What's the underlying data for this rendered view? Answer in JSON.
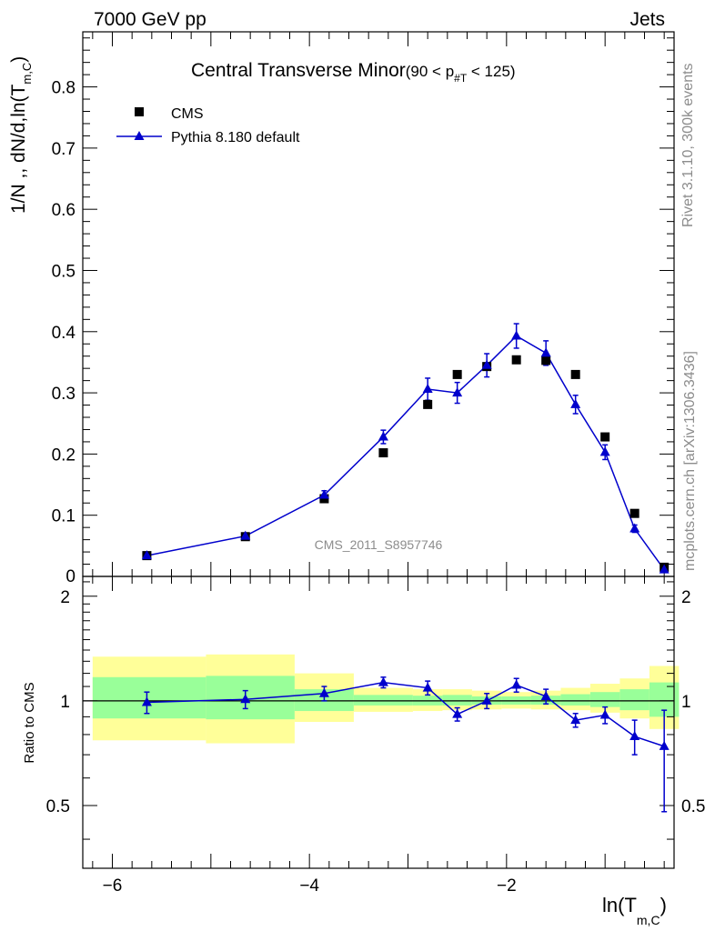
{
  "header": {
    "left": "7000 GeV pp",
    "right": "Jets"
  },
  "side_text": {
    "top": "Rivet 3.1.10,  300k events",
    "bottom": "mcplots.cern.ch [arXiv:1306.3436]"
  },
  "watermark": "CMS_2011_S8957746",
  "chart_data": [
    {
      "type": "scatter",
      "panel": "main",
      "title": {
        "main": "Central Transverse Minor",
        "range_open": "(90 < p",
        "range_sub": "#T",
        "range_close": " < 125)"
      },
      "ylabel": {
        "main": "1/N ,, dN/d,ln(T",
        "sub": "m,C",
        "close": ")"
      },
      "xlim": [
        -6.3,
        -0.3
      ],
      "ylim": [
        0,
        0.89
      ],
      "yticks": [
        0.1,
        0.2,
        0.3,
        0.4,
        0.5,
        0.6,
        0.7,
        0.8
      ],
      "ytick_labels": [
        "0.1",
        "0.2",
        "0.3",
        "0.4",
        "0.5",
        "0.6",
        "0.7",
        "0.8"
      ],
      "y_zero_label": "0",
      "legend": {
        "placement": "top-left",
        "entries": [
          "CMS",
          "Pythia 8.180 default"
        ]
      },
      "series": [
        {
          "name": "CMS",
          "marker": "square",
          "color": "#000000",
          "x": [
            -5.65,
            -4.65,
            -3.85,
            -3.25,
            -2.8,
            -2.5,
            -2.2,
            -1.9,
            -1.6,
            -1.3,
            -1.0,
            -0.7,
            -0.4
          ],
          "y": [
            0.034,
            0.065,
            0.127,
            0.202,
            0.281,
            0.33,
            0.343,
            0.354,
            0.353,
            0.33,
            0.228,
            0.103,
            0.015
          ]
        },
        {
          "name": "Pythia 8.180 default",
          "marker": "triangle",
          "color": "#0000cc",
          "x": [
            -5.65,
            -4.65,
            -3.85,
            -3.25,
            -2.8,
            -2.5,
            -2.2,
            -1.9,
            -1.6,
            -1.3,
            -1.0,
            -0.7,
            -0.4
          ],
          "y": [
            0.034,
            0.066,
            0.133,
            0.228,
            0.306,
            0.3,
            0.345,
            0.393,
            0.365,
            0.281,
            0.203,
            0.078,
            0.011
          ],
          "err": [
            0.002,
            0.003,
            0.007,
            0.011,
            0.018,
            0.017,
            0.019,
            0.02,
            0.02,
            0.015,
            0.012,
            0.006,
            0.003
          ]
        }
      ]
    },
    {
      "type": "line",
      "panel": "ratio",
      "ylabel": "Ratio to CMS",
      "xlabel": {
        "main": "ln(T",
        "sub": "m,C",
        "close": ")"
      },
      "xlim": [
        -6.3,
        -0.3
      ],
      "ylim": [
        0.33,
        2.28
      ],
      "yscale": "log",
      "yticks": [
        0.5,
        1,
        2
      ],
      "ytick_labels": [
        "0.5",
        "1",
        "2"
      ],
      "xticks": [
        -6,
        -4,
        -2
      ],
      "xtick_labels": [
        "−6",
        "−4",
        "−2"
      ],
      "bands": [
        {
          "x0": -6.2,
          "x1": -5.05,
          "yellow": [
            0.77,
            1.34
          ],
          "green": [
            0.89,
            1.17
          ]
        },
        {
          "x0": -5.05,
          "x1": -4.15,
          "yellow": [
            0.755,
            1.36
          ],
          "green": [
            0.885,
            1.18
          ]
        },
        {
          "x0": -4.15,
          "x1": -3.55,
          "yellow": [
            0.87,
            1.2
          ],
          "green": [
            0.935,
            1.08
          ]
        },
        {
          "x0": -3.55,
          "x1": -2.95,
          "yellow": [
            0.93,
            1.09
          ],
          "green": [
            0.97,
            1.04
          ]
        },
        {
          "x0": -2.95,
          "x1": -2.65,
          "yellow": [
            0.935,
            1.08
          ],
          "green": [
            0.97,
            1.035
          ]
        },
        {
          "x0": -2.65,
          "x1": -2.35,
          "yellow": [
            0.94,
            1.08
          ],
          "green": [
            0.97,
            1.04
          ]
        },
        {
          "x0": -2.35,
          "x1": -2.05,
          "yellow": [
            0.945,
            1.07
          ],
          "green": [
            0.975,
            1.03
          ]
        },
        {
          "x0": -2.05,
          "x1": -1.75,
          "yellow": [
            0.95,
            1.06
          ],
          "green": [
            0.975,
            1.03
          ]
        },
        {
          "x0": -1.75,
          "x1": -1.45,
          "yellow": [
            0.945,
            1.07
          ],
          "green": [
            0.975,
            1.035
          ]
        },
        {
          "x0": -1.45,
          "x1": -1.15,
          "yellow": [
            0.94,
            1.09
          ],
          "green": [
            0.97,
            1.045
          ]
        },
        {
          "x0": -1.15,
          "x1": -0.85,
          "yellow": [
            0.925,
            1.12
          ],
          "green": [
            0.96,
            1.06
          ]
        },
        {
          "x0": -0.85,
          "x1": -0.55,
          "yellow": [
            0.89,
            1.16
          ],
          "green": [
            0.94,
            1.08
          ]
        },
        {
          "x0": -0.55,
          "x1": -0.25,
          "yellow": [
            0.83,
            1.26
          ],
          "green": [
            0.9,
            1.13
          ]
        }
      ],
      "series": [
        {
          "name": "Pythia 8.180 default",
          "color": "#0000cc",
          "x": [
            -5.65,
            -4.65,
            -3.85,
            -3.25,
            -2.8,
            -2.5,
            -2.2,
            -1.9,
            -1.6,
            -1.3,
            -1.0,
            -0.7,
            -0.4
          ],
          "y": [
            0.99,
            1.01,
            1.05,
            1.13,
            1.09,
            0.915,
            1.0,
            1.11,
            1.03,
            0.88,
            0.91,
            0.79,
            0.74
          ],
          "err_lo": [
            0.07,
            0.06,
            0.05,
            0.04,
            0.05,
            0.04,
            0.05,
            0.05,
            0.05,
            0.04,
            0.05,
            0.09,
            0.26
          ],
          "err_hi": [
            0.07,
            0.06,
            0.05,
            0.04,
            0.05,
            0.04,
            0.05,
            0.05,
            0.05,
            0.04,
            0.05,
            0.09,
            0.2
          ]
        }
      ]
    }
  ]
}
